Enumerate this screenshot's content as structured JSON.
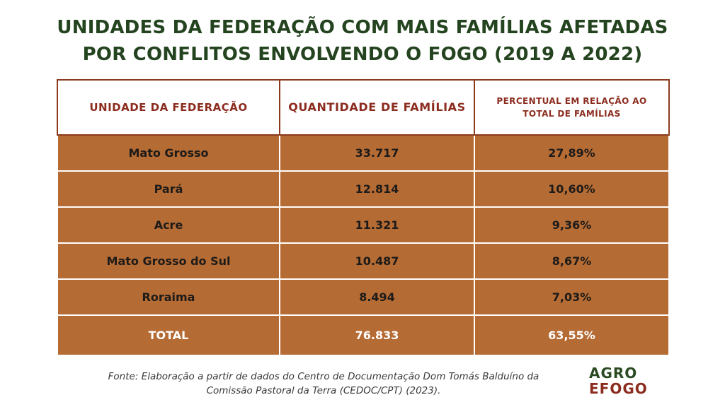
{
  "title": {
    "line1": "UNIDADES DA FEDERAÇÃO COM MAIS FAMÍLIAS AFETADAS",
    "line2": "POR CONFLITOS ENVOLVENDO O FOGO (2019 A 2022)"
  },
  "table": {
    "headers": [
      "UNIDADE DA FEDERAÇÃO",
      "QUANTIDADE DE FAMÍLIAS",
      "PERCENTUAL EM RELAÇÃO AO TOTAL DE FAMÍLIAS"
    ],
    "rows": [
      [
        "Mato Grosso",
        "33.717",
        "27,89%"
      ],
      [
        "Pará",
        "12.814",
        "10,60%"
      ],
      [
        "Acre",
        "11.321",
        "9,36%"
      ],
      [
        "Mato Grosso do Sul",
        "10.487",
        "8,67%"
      ],
      [
        "Roraima",
        "8.494",
        "7,03%"
      ]
    ],
    "total": [
      "TOTAL",
      "76.833",
      "63,55%"
    ]
  },
  "source": {
    "line1": "Fonte: Elaboração a partir de dados do Centro de Documentação Dom Tomás Balduíno da",
    "line2": "Comissão Pastoral da Terra (CEDOC/CPT) (2023)."
  },
  "logo": {
    "word1": "AGRO",
    "word2": "EFOGO"
  },
  "colors": {
    "title": "#24431f",
    "header_text": "#8b2c1f",
    "cell_bg": "#b56b34",
    "border": "#8b3a1e"
  }
}
